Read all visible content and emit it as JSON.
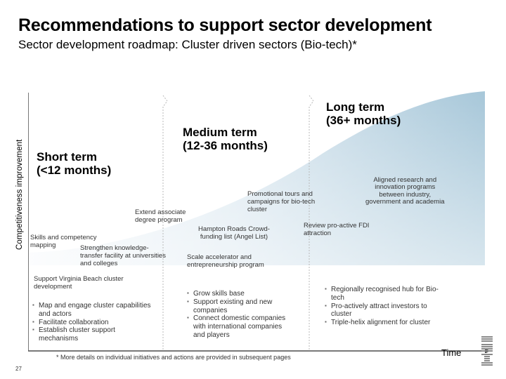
{
  "header": {
    "title": "Recommendations to support sector development",
    "subtitle": "Sector development roadmap: Cluster driven sectors (Bio-tech)*"
  },
  "axes": {
    "y_label": "Competitiveness improvement",
    "x_label": "Time"
  },
  "phases": {
    "short": {
      "line1": "Short term",
      "line2": "(<12 months)"
    },
    "medium": {
      "line1": "Medium term",
      "line2": "(12-36 months)"
    },
    "long": {
      "line1": "Long term",
      "line2": "(36+ months)"
    }
  },
  "initiatives": {
    "skills_mapping": {
      "line1": "Skills and competency",
      "line2": "mapping"
    },
    "strengthen_transfer": {
      "line1": "Strengthen knowledge-",
      "line2": "transfer facility at universities",
      "line3": "and colleges"
    },
    "extend_associate": {
      "line1": "Extend associate",
      "line2": "degree program"
    },
    "hampton_roads": {
      "line1": "Hampton Roads Crowd-",
      "line2": "funding list (Angel List)"
    },
    "promotional_tours": {
      "line1": "Promotional tours and",
      "line2": "campaigns for bio-tech",
      "line3": "cluster"
    },
    "scale_accelerator": {
      "line1": "Scale accelerator and",
      "line2": "entrepreneurship program"
    },
    "review_fdi": {
      "line1": "Review pro-active FDI",
      "line2": "attraction"
    },
    "aligned_research": {
      "line1": "Aligned research and",
      "line2": "innovation programs",
      "line3": "between industry,",
      "line4": "government and academia"
    }
  },
  "summaries": {
    "short": {
      "heading_line1": "Support Virginia Beach cluster",
      "heading_line2": "development",
      "bullets": [
        {
          "line1": "Map and engage cluster capabilities",
          "line2": "and actors"
        },
        {
          "line1": "Facilitate collaboration",
          "line2": ""
        },
        {
          "line1": "Establish cluster support",
          "line2": "mechanisms"
        }
      ]
    },
    "medium": {
      "bullets": [
        {
          "line1": "Grow skills base",
          "line2": ""
        },
        {
          "line1": "Support existing and new",
          "line2": "companies"
        },
        {
          "line1": "Connect domestic companies",
          "line2": "with international companies",
          "line3": "and players"
        }
      ]
    },
    "long": {
      "bullets": [
        {
          "line1": "Regionally recognised hub for Bio-",
          "line2": "tech"
        },
        {
          "line1": "Pro-actively attract investors to",
          "line2": "cluster"
        },
        {
          "line1": "Triple-helix alignment for cluster",
          "line2": ""
        }
      ]
    }
  },
  "footer": {
    "footnote": "* More details on individual initiatives and actions are provided in subsequent pages",
    "page_number": "27"
  },
  "colors": {
    "band_light": "#f4f8fb",
    "band_mid": "#d6e6ef",
    "band_dark": "#a9c9da",
    "axis": "#4d4d4d",
    "divider": "#b9b9b9"
  }
}
